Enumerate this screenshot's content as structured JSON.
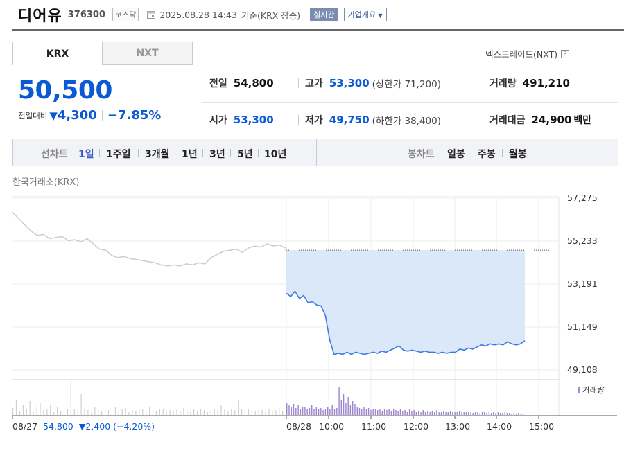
{
  "header": {
    "name": "디어유",
    "code": "376300",
    "market": "코스닥",
    "datetime": "2025.08.28 14:43",
    "basis": "기준(KRX 장중)",
    "realtime_btn": "실시간",
    "company_btn": "기업개요",
    "icon": "calendar-icon"
  },
  "tabs": [
    "KRX",
    "NXT"
  ],
  "nxt_trade": {
    "label": "넥스트레이드(NXT)",
    "help": "?"
  },
  "price": {
    "current": "50,500",
    "change_label": "전일대비",
    "change_arrow": "▼",
    "change": "4,300",
    "change_pct": "−7.85%"
  },
  "stats": {
    "prev_label": "전일",
    "prev": "54,800",
    "high_label": "고가",
    "high": "53,300",
    "upper_label": "(상한가 71,200)",
    "volume_label": "거래량",
    "volume": "491,210",
    "open_label": "시가",
    "open": "53,300",
    "low_label": "저가",
    "low": "49,750",
    "lower_label": "(하한가 38,400)",
    "amount_label": "거래대금",
    "amount": "24,900",
    "amount_unit": "백만"
  },
  "periods": {
    "line_label": "선차트",
    "line_items": [
      "1일",
      "1주일",
      "3개월",
      "1년",
      "3년",
      "5년",
      "10년"
    ],
    "active": "1일",
    "candle_label": "봉차트",
    "candle_items": [
      "일봉",
      "주봉",
      "월봉"
    ]
  },
  "exchange_label": "한국거래소(KRX)",
  "volume_legend": "거래량",
  "prev_day": {
    "date": "08/27",
    "close": "54,800",
    "change": "▼2,400 (−4.20%)"
  },
  "colors": {
    "down": "#0a5ad4",
    "prev_line": "#cccccc",
    "today_fill": "#dbe8f9",
    "today_line": "#3f78e0",
    "volume_prev": "#cfcfcf",
    "volume_today": "#9d84cf"
  },
  "chart_data": {
    "type": "line",
    "ylim": [
      49108,
      57275
    ],
    "yticks": [
      57275,
      55233,
      53191,
      51149,
      49108
    ],
    "ytick_labels": [
      "57,275",
      "55,233",
      "53,191",
      "51,149",
      "49,108"
    ],
    "xtick_labels": [
      "08/28",
      "10:00",
      "11:00",
      "12:00",
      "13:00",
      "14:00",
      "15:00"
    ],
    "reference_line": 54800,
    "series": [
      {
        "name": "08/27",
        "values": [
          56600,
          56300,
          56000,
          55700,
          55500,
          55550,
          55350,
          55400,
          55450,
          55250,
          55300,
          55200,
          55350,
          55100,
          54850,
          54800,
          54550,
          54450,
          54500,
          54400,
          54350,
          54300,
          54250,
          54200,
          54100,
          54050,
          54100,
          54050,
          54150,
          54100,
          54200,
          54150,
          54450,
          54600,
          54750,
          54800,
          54850,
          54700,
          54900,
          55000,
          54950,
          55100,
          55000,
          55050,
          54900
        ]
      },
      {
        "name": "08/28",
        "values": [
          52750,
          52600,
          52850,
          52500,
          52650,
          52300,
          52350,
          52200,
          52150,
          51700,
          50550,
          49850,
          49900,
          49850,
          49950,
          49850,
          49950,
          49900,
          49850,
          49900,
          49950,
          49900,
          50000,
          49950,
          50050,
          50150,
          50250,
          50050,
          50000,
          50050,
          50000,
          49950,
          50000,
          49950,
          49950,
          49900,
          49950,
          49900,
          49950,
          49950,
          50100,
          50050,
          50150,
          50100,
          50200,
          50300,
          50250,
          50350,
          50300,
          50350,
          50300,
          50450,
          50350,
          50300,
          50350,
          50500
        ]
      }
    ],
    "volume_series": [
      {
        "name": "08/27",
        "values": [
          10,
          22,
          6,
          14,
          8,
          20,
          5,
          12,
          18,
          7,
          9,
          15,
          4,
          11,
          6,
          13,
          8,
          50,
          9,
          6,
          30,
          10,
          7,
          5,
          12,
          8,
          6,
          9,
          7,
          5,
          11,
          6,
          8,
          10,
          5,
          7,
          6,
          9,
          8,
          5,
          12,
          7,
          6,
          8,
          9,
          5,
          7,
          6,
          8,
          6,
          10,
          7,
          5,
          8,
          6,
          9,
          7,
          5,
          6,
          8,
          7,
          14,
          9,
          6,
          8,
          7,
          22,
          9,
          6,
          8,
          7,
          6,
          9,
          7,
          5,
          8,
          6,
          7,
          10,
          6
        ]
      },
      {
        "name": "08/28",
        "values": [
          18,
          14,
          12,
          16,
          10,
          14,
          9,
          12,
          11,
          8,
          10,
          15,
          9,
          12,
          8,
          10,
          7,
          9,
          11,
          8,
          14,
          9,
          10,
          40,
          22,
          30,
          18,
          26,
          14,
          20,
          16,
          12,
          10,
          9,
          11,
          8,
          10,
          7,
          9,
          8,
          7,
          9,
          6,
          8,
          7,
          9,
          6,
          8,
          7,
          6,
          9,
          6,
          7,
          5,
          8,
          6,
          7,
          5,
          6,
          5,
          7,
          5,
          6,
          4,
          6,
          5,
          7,
          4,
          5,
          6,
          4,
          5,
          6,
          4,
          5,
          4,
          6,
          4,
          5,
          4,
          5,
          4,
          3,
          5,
          4,
          3,
          5,
          4,
          3,
          4,
          3,
          4,
          3,
          4,
          3,
          3,
          4,
          3,
          3,
          2,
          3,
          2,
          3,
          2,
          3
        ]
      }
    ]
  }
}
